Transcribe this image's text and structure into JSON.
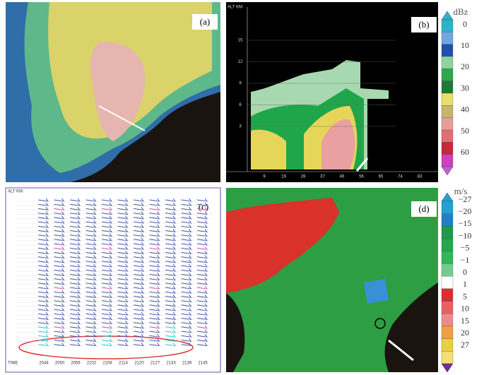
{
  "panels": [
    {
      "label": "(a)"
    },
    {
      "label": "(b)",
      "alt_label": "ALT KM",
      "y_labels": [
        "15",
        "12",
        "9",
        "6",
        "3"
      ],
      "x_labels": [
        "9",
        "19",
        "28",
        "37",
        "46",
        "56",
        "65",
        "74",
        "83"
      ]
    },
    {
      "label": "(c)",
      "alt_label": "ALT KM",
      "time_label": "TIME",
      "times": [
        "2044",
        "2050",
        "2056",
        "2102",
        "2108",
        "2114",
        "2120",
        "2127",
        "2133",
        "2139",
        "2145"
      ]
    },
    {
      "label": "(d)"
    }
  ],
  "colorbars": [
    {
      "unit": "dBz",
      "labels": [
        "0",
        "10",
        "20",
        "30",
        "40",
        "50",
        "60"
      ]
    },
    {
      "unit": "m/s",
      "labels": [
        "−27",
        "−20",
        "−15",
        "−10",
        "−5",
        "−1",
        "0",
        "1",
        "5",
        "10",
        "15",
        "20",
        "27"
      ]
    }
  ]
}
